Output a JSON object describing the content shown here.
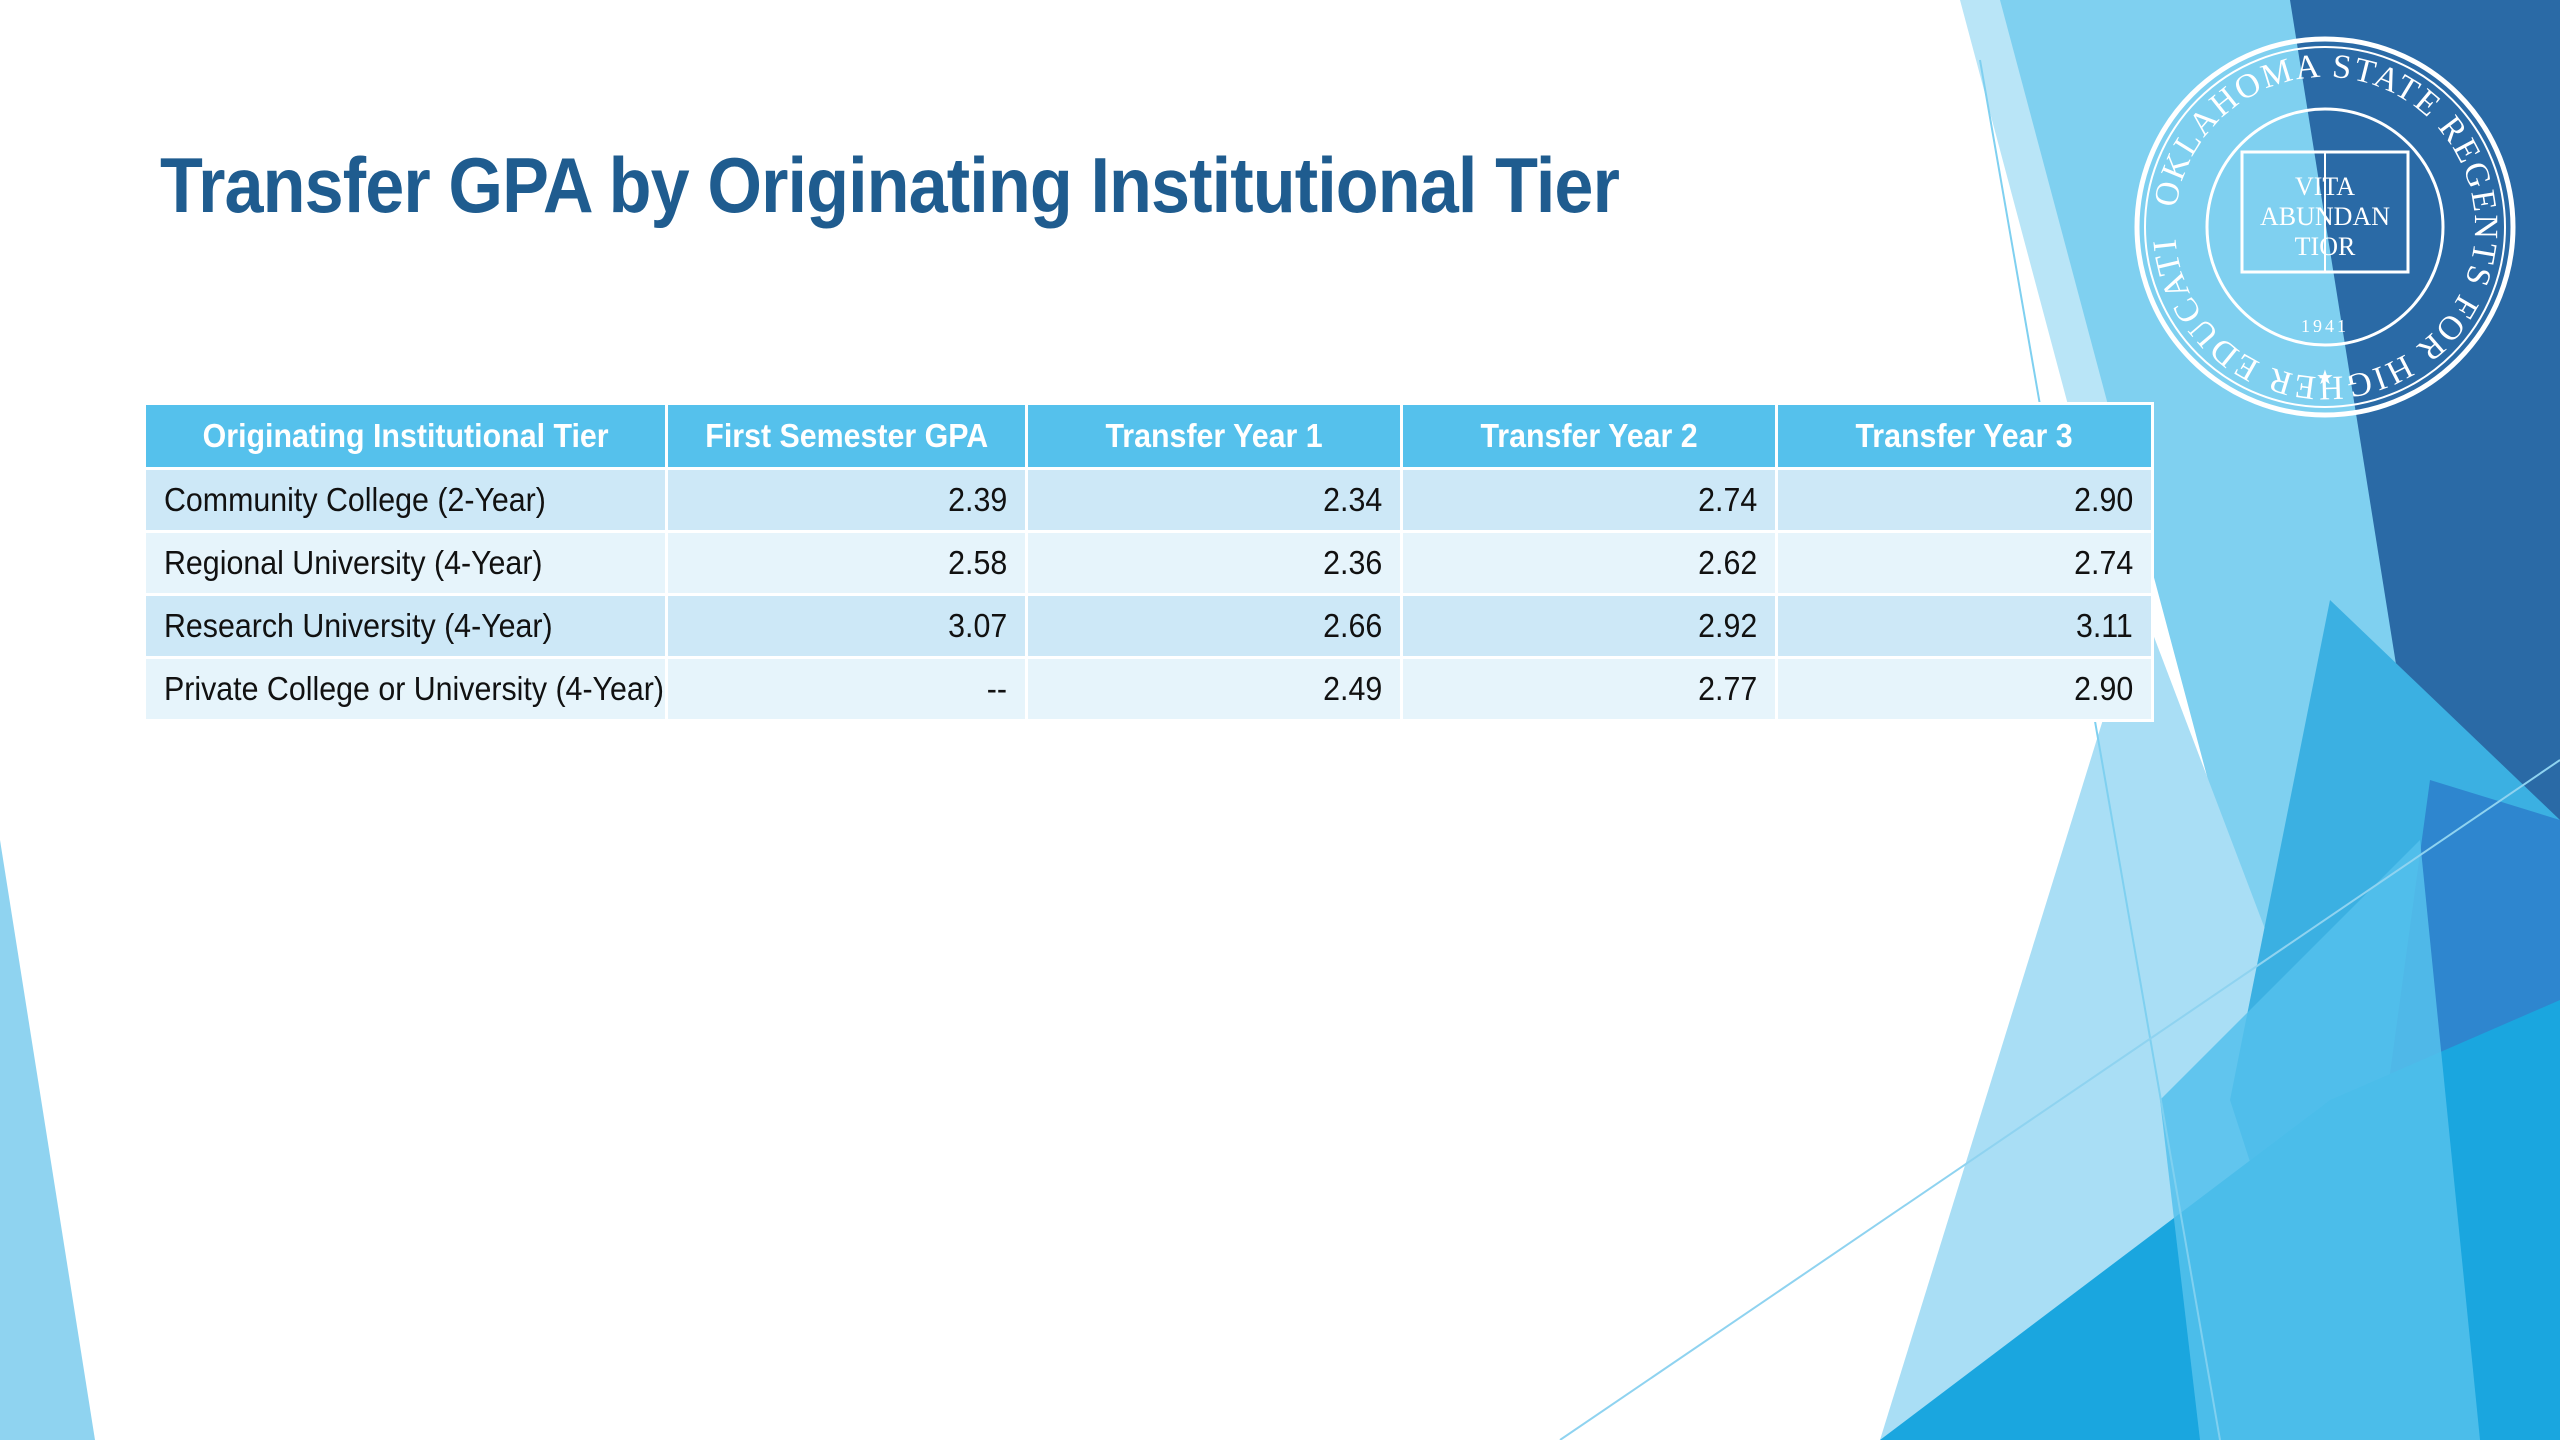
{
  "slide": {
    "title": "Transfer GPA by Originating Institutional Tier"
  },
  "table": {
    "headers": [
      "Originating Institutional Tier",
      "First Semester GPA",
      "Transfer Year 1",
      "Transfer Year 2",
      "Transfer Year 3"
    ],
    "rows": [
      [
        "Community College (2-Year)",
        "2.39",
        "2.34",
        "2.74",
        "2.90"
      ],
      [
        "Regional University (4-Year)",
        "2.58",
        "2.36",
        "2.62",
        "2.74"
      ],
      [
        "Research University (4-Year)",
        "3.07",
        "2.66",
        "2.92",
        "3.11"
      ],
      [
        "Private College or University (4-Year)",
        "--",
        "2.49",
        "2.77",
        "2.90"
      ]
    ]
  },
  "seal": {
    "ring_text": "OKLAHOMA STATE REGENTS FOR HIGHER EDUCATION",
    "motto": [
      "VITA",
      "ABUNDAN",
      "TIOR"
    ],
    "year": "1941"
  },
  "colors": {
    "title": "#1f5c8f",
    "header_bg": "#55c1ec",
    "row_odd": "#cde8f7",
    "row_even": "#e6f4fb",
    "accent_dark": "#2a6aa6",
    "accent_mid": "#3bb0e2",
    "accent_light": "#8fd3f0"
  }
}
